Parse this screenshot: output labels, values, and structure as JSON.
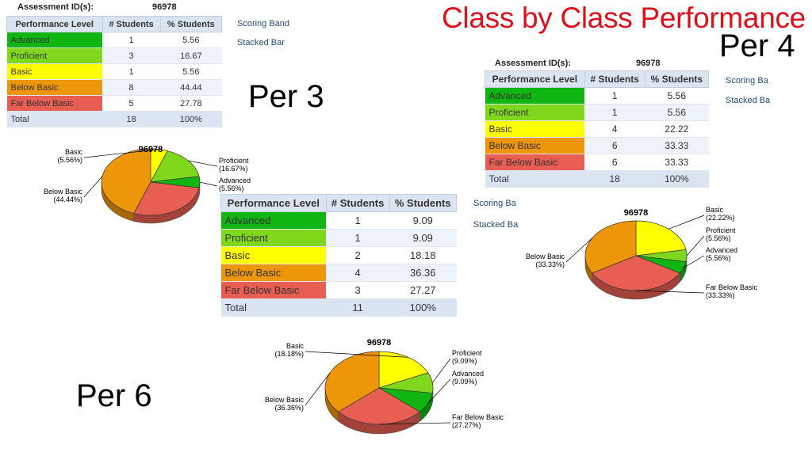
{
  "title": "Class by Class Performance",
  "colors": {
    "advanced": "#11b511",
    "proficient": "#7fd81c",
    "basic": "#ffff00",
    "below_basic": "#ee960a",
    "far_below_basic": "#e85e52",
    "header_bg": "#dbe5f1"
  },
  "headers": [
    "Performance Level",
    "# Students",
    "% Students"
  ],
  "levels": [
    "Advanced",
    "Proficient",
    "Basic",
    "Below Basic",
    "Far Below Basic"
  ],
  "side_links": [
    "Scoring Band",
    "Stacked Bar"
  ],
  "per3": {
    "label": "Per 3",
    "assessment_label": "Assessment ID(s):",
    "assessment_id": "96978",
    "rows": [
      {
        "level": "Advanced",
        "count": "1",
        "pct": "5.56"
      },
      {
        "level": "Proficient",
        "count": "3",
        "pct": "16.67"
      },
      {
        "level": "Basic",
        "count": "1",
        "pct": "5.56"
      },
      {
        "level": "Below Basic",
        "count": "8",
        "pct": "44.44"
      },
      {
        "level": "Far Below Basic",
        "count": "5",
        "pct": "27.78"
      }
    ],
    "total": {
      "label": "Total",
      "count": "18",
      "pct": "100%"
    },
    "side_links": [
      "Scoring Band",
      "Stacked Bar"
    ]
  },
  "per4": {
    "label": "Per 4",
    "assessment_label": "Assessment ID(s):",
    "assessment_id": "96978",
    "rows": [
      {
        "level": "Advanced",
        "count": "1",
        "pct": "5.56"
      },
      {
        "level": "Proficient",
        "count": "1",
        "pct": "5.56"
      },
      {
        "level": "Basic",
        "count": "4",
        "pct": "22.22"
      },
      {
        "level": "Below Basic",
        "count": "6",
        "pct": "33.33"
      },
      {
        "level": "Far Below Basic",
        "count": "6",
        "pct": "33.33"
      }
    ],
    "total": {
      "label": "Total",
      "count": "18",
      "pct": "100%"
    },
    "side_links": [
      "Scoring Ba",
      "Stacked Ba"
    ]
  },
  "per6": {
    "label": "Per 6",
    "rows": [
      {
        "level": "Advanced",
        "count": "1",
        "pct": "9.09"
      },
      {
        "level": "Proficient",
        "count": "1",
        "pct": "9.09"
      },
      {
        "level": "Basic",
        "count": "2",
        "pct": "18.18"
      },
      {
        "level": "Below Basic",
        "count": "4",
        "pct": "36.36"
      },
      {
        "level": "Far Below Basic",
        "count": "3",
        "pct": "27.27"
      }
    ],
    "total": {
      "label": "Total",
      "count": "11",
      "pct": "100%"
    },
    "side_links": [
      "Scoring Ba",
      "Stacked Ba"
    ]
  },
  "chart_data": [
    {
      "type": "pie",
      "title": "96978",
      "categories": [
        "Basic",
        "Proficient",
        "Advanced",
        "Far Below Basic",
        "Below Basic"
      ],
      "values": [
        5.56,
        16.67,
        5.56,
        27.78,
        44.44
      ],
      "slice_labels": [
        {
          "name": "Basic",
          "pct": "(5.56%)"
        },
        {
          "name": "Proficient",
          "pct": "(16.67%)"
        },
        {
          "name": "Advanced",
          "pct": "(5.56%)"
        },
        {
          "name": "Below Basic",
          "pct": "(44.44%)"
        }
      ]
    },
    {
      "type": "pie",
      "title": "96978",
      "categories": [
        "Basic",
        "Proficient",
        "Advanced",
        "Far Below Basic",
        "Below Basic"
      ],
      "values": [
        22.22,
        5.56,
        5.56,
        33.33,
        33.33
      ],
      "slice_labels": [
        {
          "name": "Basic",
          "pct": "(22.22%)"
        },
        {
          "name": "Proficient",
          "pct": "(5.56%)"
        },
        {
          "name": "Advanced",
          "pct": "(5.56%)"
        },
        {
          "name": "Far Below Basic",
          "pct": "(33.33%)"
        },
        {
          "name": "Below Basic",
          "pct": "(33.33%)"
        }
      ]
    },
    {
      "type": "pie",
      "title": "96978",
      "categories": [
        "Basic",
        "Proficient",
        "Advanced",
        "Far Below Basic",
        "Below Basic"
      ],
      "values": [
        18.18,
        9.09,
        9.09,
        27.27,
        36.36
      ],
      "slice_labels": [
        {
          "name": "Basic",
          "pct": "(18.18%)"
        },
        {
          "name": "Proficient",
          "pct": "(9.09%)"
        },
        {
          "name": "Advanced",
          "pct": "(9.09%)"
        },
        {
          "name": "Far Below Basic",
          "pct": "(27.27%)"
        },
        {
          "name": "Below Basic",
          "pct": "(36.36%)"
        }
      ]
    }
  ]
}
